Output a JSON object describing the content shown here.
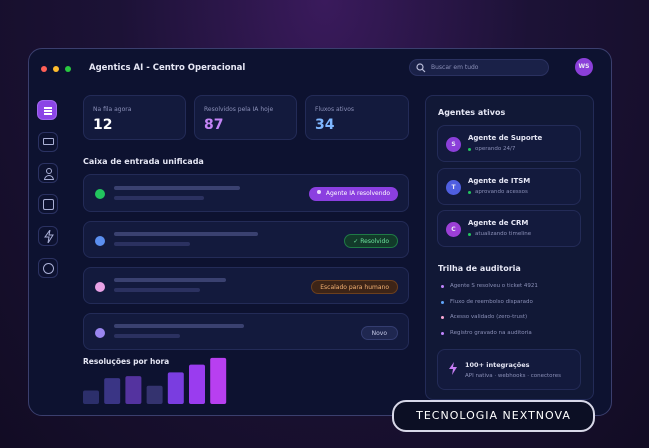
{
  "window": {
    "title": "Agentics AI - Centro Operacional",
    "search": "Buscar em tudo",
    "avatar": "WS"
  },
  "stats": [
    {
      "label": "Na fila agora",
      "value": "12"
    },
    {
      "label": "Resolvidos pela IA hoje",
      "value": "87"
    },
    {
      "label": "Fluxos ativos",
      "value": "34"
    }
  ],
  "inbox": {
    "title": "Caixa de entrada unificada",
    "badges": [
      "Agente IA resolvendo",
      "Resolvido",
      "Escalado para humano",
      "Novo"
    ]
  },
  "chart_data": {
    "type": "bar",
    "title": "Resoluções por hora",
    "values": [
      14,
      27,
      29,
      19,
      33,
      41,
      48
    ],
    "ylim": [
      0,
      50
    ],
    "colors": [
      "#2c2f6b",
      "#3a3585",
      "#54339f",
      "#34336f",
      "#7a3de0",
      "#9a3cef",
      "#b83ff0"
    ]
  },
  "agents": {
    "title": "Agentes ativos",
    "items": [
      {
        "initial": "S",
        "name": "Agente de Suporte",
        "status": "operando 24/7"
      },
      {
        "initial": "T",
        "name": "Agente de ITSM",
        "status": "aprovando acessos"
      },
      {
        "initial": "C",
        "name": "Agente de CRM",
        "status": "atualizando timeline"
      }
    ]
  },
  "audit": {
    "title": "Trilha de auditoria",
    "items": [
      "Agente S resolveu o ticket 4921",
      "Fluxo de reembolso disparado",
      "Acesso validado (zero-trust)",
      "Registro gravado na auditoria"
    ]
  },
  "integrations": {
    "title": "100+ integrações",
    "subtitle": "API nativa · webhooks · conectores"
  },
  "badge": "TECNOLOGIA NEXTNOVA"
}
